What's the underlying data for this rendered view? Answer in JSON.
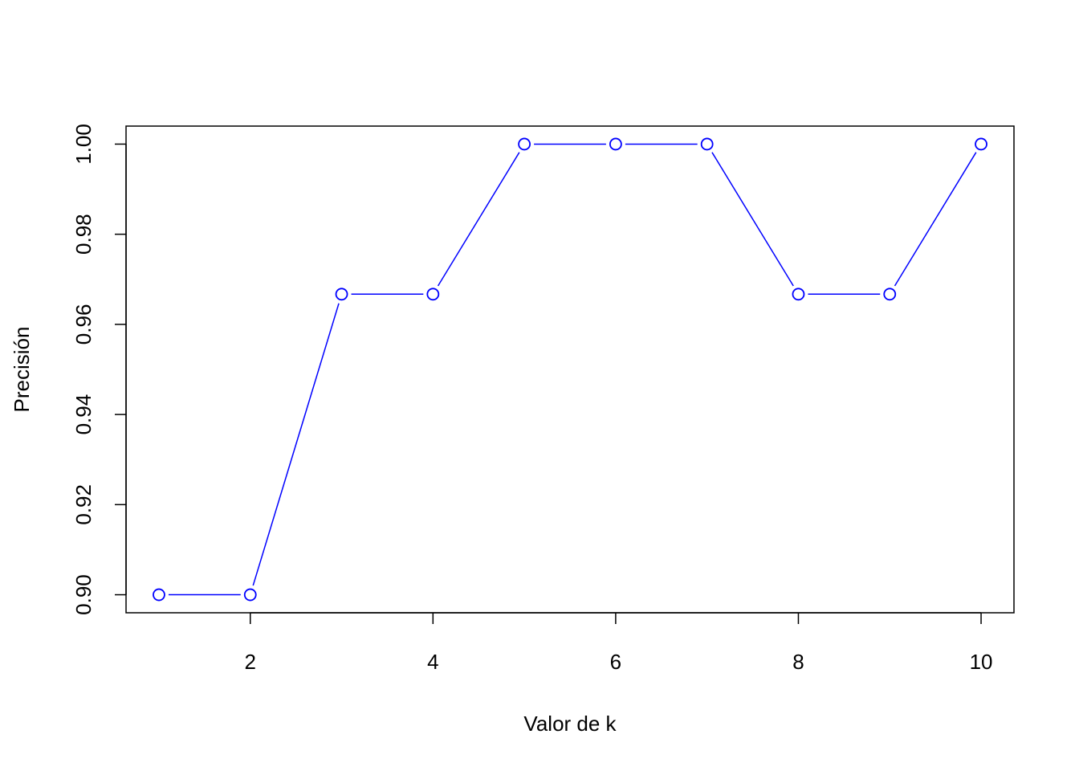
{
  "chart_data": {
    "type": "line",
    "title": "",
    "xlabel": "Valor de k",
    "ylabel": "Precisión",
    "x": [
      1,
      2,
      3,
      4,
      5,
      6,
      7,
      8,
      9,
      10
    ],
    "series": [
      {
        "values": [
          0.9,
          0.9,
          0.9667,
          0.9667,
          1.0,
          1.0,
          1.0,
          0.9667,
          0.9667,
          1.0
        ]
      }
    ],
    "x_ticks": [
      2,
      4,
      6,
      8,
      10
    ],
    "x_tick_labels": [
      "2",
      "4",
      "6",
      "8",
      "10"
    ],
    "y_ticks": [
      0.9,
      0.92,
      0.94,
      0.96,
      0.98,
      1.0
    ],
    "y_tick_labels": [
      "0.90",
      "0.92",
      "0.94",
      "0.96",
      "0.98",
      "1.00"
    ],
    "xlim": [
      0.64,
      10.36
    ],
    "ylim": [
      0.896,
      1.004
    ],
    "marker": "open-circle",
    "grid": false,
    "line_color": "#0000ff"
  }
}
